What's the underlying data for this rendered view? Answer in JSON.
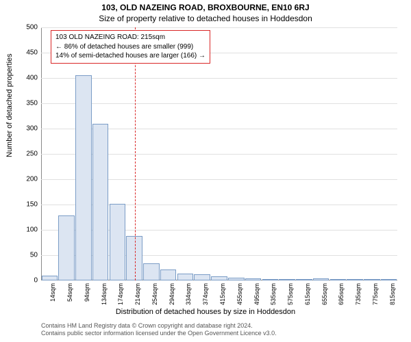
{
  "title": "103, OLD NAZEING ROAD, BROXBOURNE, EN10 6RJ",
  "subtitle": "Size of property relative to detached houses in Hoddesdon",
  "y_label": "Number of detached properties",
  "x_label": "Distribution of detached houses by size in Hoddesdon",
  "footer_line1": "Contains HM Land Registry data © Crown copyright and database right 2024.",
  "footer_line2": "Contains public sector information licensed under the Open Government Licence v3.0.",
  "chart": {
    "type": "bar",
    "ylim": [
      0,
      500
    ],
    "ytick_step": 50,
    "bar_fill": "#dce5f2",
    "bar_stroke": "#7a9cc6",
    "grid_color": "#e0e0e0",
    "background_color": "#ffffff",
    "ref_line_color": "#d92525",
    "ref_value_sqm": 215,
    "categories": [
      "14sqm",
      "54sqm",
      "94sqm",
      "134sqm",
      "174sqm",
      "214sqm",
      "254sqm",
      "294sqm",
      "334sqm",
      "374sqm",
      "415sqm",
      "455sqm",
      "495sqm",
      "535sqm",
      "575sqm",
      "615sqm",
      "655sqm",
      "695sqm",
      "735sqm",
      "775sqm",
      "815sqm"
    ],
    "values": [
      10,
      128,
      405,
      310,
      152,
      88,
      34,
      22,
      14,
      12,
      8,
      5,
      4,
      3,
      3,
      2,
      4,
      0,
      0,
      0,
      2
    ],
    "title_fontsize": 12,
    "label_fontsize": 11,
    "tick_fontsize": 10,
    "x_tick_fontsize": 9
  },
  "info_box": {
    "line1": "103 OLD NAZEING ROAD: 215sqm",
    "line2": "← 86% of detached houses are smaller (999)",
    "line3": "14% of semi-detached houses are larger (166) →",
    "border_color": "#d92525",
    "fontsize": 10
  }
}
